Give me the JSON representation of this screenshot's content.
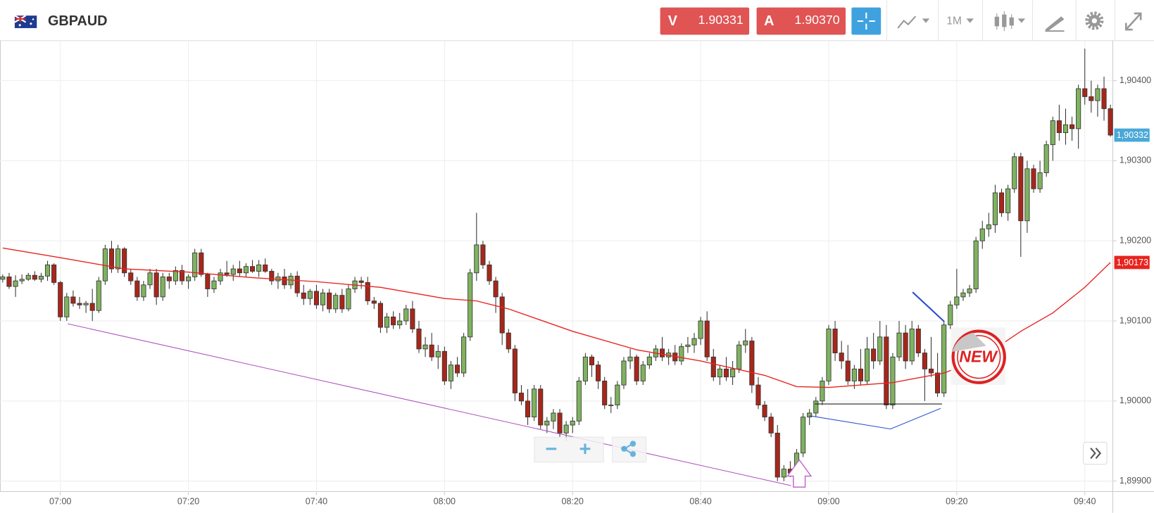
{
  "header": {
    "symbol": "GBPAUD",
    "sell_label": "V",
    "sell_price": 1.90331,
    "buy_label": "A",
    "buy_price": {
      "value": 1.9037,
      "label": "1.90370"
    },
    "timeframe": "1M"
  },
  "badge": "NEW",
  "chart_data": {
    "type": "candlestick",
    "x": [
      "06:51",
      "06:52",
      "06:53",
      "06:54",
      "06:55",
      "06:56",
      "06:57",
      "06:58",
      "06:59",
      "07:00",
      "07:01",
      "07:02",
      "07:03",
      "07:04",
      "07:05",
      "07:06",
      "07:07",
      "07:08",
      "07:09",
      "07:10",
      "07:11",
      "07:12",
      "07:13",
      "07:14",
      "07:15",
      "07:16",
      "07:17",
      "07:18",
      "07:19",
      "07:20",
      "07:21",
      "07:22",
      "07:23",
      "07:24",
      "07:25",
      "07:26",
      "07:27",
      "07:28",
      "07:29",
      "07:30",
      "07:31",
      "07:32",
      "07:33",
      "07:34",
      "07:35",
      "07:36",
      "07:37",
      "07:38",
      "07:39",
      "07:40",
      "07:41",
      "07:42",
      "07:43",
      "07:44",
      "07:45",
      "07:46",
      "07:47",
      "07:48",
      "07:49",
      "07:50",
      "07:51",
      "07:52",
      "07:53",
      "07:54",
      "07:55",
      "07:56",
      "07:57",
      "07:58",
      "07:59",
      "08:00",
      "08:01",
      "08:02",
      "08:03",
      "08:04",
      "08:05",
      "08:06",
      "08:07",
      "08:08",
      "08:09",
      "08:10",
      "08:11",
      "08:12",
      "08:13",
      "08:14",
      "08:15",
      "08:16",
      "08:17",
      "08:18",
      "08:19",
      "08:20",
      "08:21",
      "08:22",
      "08:23",
      "08:24",
      "08:25",
      "08:26",
      "08:27",
      "08:28",
      "08:29",
      "08:30",
      "08:31",
      "08:32",
      "08:33",
      "08:34",
      "08:35",
      "08:36",
      "08:37",
      "08:38",
      "08:39",
      "08:40",
      "08:41",
      "08:42",
      "08:43",
      "08:44",
      "08:45",
      "08:46",
      "08:47",
      "08:48",
      "08:49",
      "08:50",
      "08:51",
      "08:52",
      "08:53",
      "08:54",
      "08:55",
      "08:56",
      "08:57",
      "08:58",
      "08:59",
      "09:00",
      "09:01",
      "09:02",
      "09:03",
      "09:04",
      "09:05",
      "09:06",
      "09:07",
      "09:08",
      "09:09",
      "09:10",
      "09:11",
      "09:12",
      "09:13",
      "09:14",
      "09:15",
      "09:16",
      "09:17",
      "09:18",
      "09:19",
      "09:20",
      "09:21",
      "09:22",
      "09:23",
      "09:24",
      "09:25",
      "09:26",
      "09:27",
      "09:28",
      "09:29",
      "09:30",
      "09:31",
      "09:32",
      "09:33",
      "09:34",
      "09:35",
      "09:36",
      "09:37",
      "09:38",
      "09:39",
      "09:40",
      "09:41",
      "09:42",
      "09:43",
      "09:44"
    ],
    "candles": [
      [
        1.90152,
        1.90158,
        1.90148,
        1.90155
      ],
      [
        1.90155,
        1.9016,
        1.9014,
        1.90143
      ],
      [
        1.90143,
        1.90157,
        1.9013,
        1.9015
      ],
      [
        1.9015,
        1.90158,
        1.90146,
        1.90152
      ],
      [
        1.90152,
        1.9016,
        1.9015,
        1.90157
      ],
      [
        1.90157,
        1.90162,
        1.9015,
        1.90152
      ],
      [
        1.90152,
        1.9016,
        1.90148,
        1.90156
      ],
      [
        1.90156,
        1.90175,
        1.9015,
        1.9017
      ],
      [
        1.9017,
        1.90172,
        1.90145,
        1.90148
      ],
      [
        1.90148,
        1.9015,
        1.901,
        1.90105
      ],
      [
        1.90105,
        1.90135,
        1.901,
        1.9013
      ],
      [
        1.9013,
        1.90138,
        1.90118,
        1.90122
      ],
      [
        1.90122,
        1.9013,
        1.90115,
        1.9012
      ],
      [
        1.9012,
        1.90125,
        1.9011,
        1.90122
      ],
      [
        1.90122,
        1.9014,
        1.901,
        1.90113
      ],
      [
        1.90113,
        1.90155,
        1.9011,
        1.9015
      ],
      [
        1.9015,
        1.90195,
        1.90145,
        1.9019
      ],
      [
        1.9019,
        1.902,
        1.9016,
        1.90165
      ],
      [
        1.90165,
        1.90195,
        1.9016,
        1.9019
      ],
      [
        1.9019,
        1.90192,
        1.90155,
        1.9016
      ],
      [
        1.9016,
        1.90165,
        1.90145,
        1.9015
      ],
      [
        1.9015,
        1.90155,
        1.90125,
        1.9013
      ],
      [
        1.9013,
        1.9015,
        1.90125,
        1.90145
      ],
      [
        1.90145,
        1.90165,
        1.9014,
        1.9016
      ],
      [
        1.9016,
        1.90165,
        1.9012,
        1.9013
      ],
      [
        1.9013,
        1.9016,
        1.90125,
        1.90155
      ],
      [
        1.90155,
        1.9016,
        1.9014,
        1.9015
      ],
      [
        1.9015,
        1.90168,
        1.90145,
        1.90163
      ],
      [
        1.90163,
        1.9017,
        1.90145,
        1.9015
      ],
      [
        1.9015,
        1.90158,
        1.9014,
        1.90155
      ],
      [
        1.90155,
        1.9019,
        1.9015,
        1.90185
      ],
      [
        1.90185,
        1.9019,
        1.90155,
        1.90158
      ],
      [
        1.90158,
        1.9016,
        1.9013,
        1.9014
      ],
      [
        1.9014,
        1.90155,
        1.90135,
        1.9015
      ],
      [
        1.9015,
        1.90165,
        1.90145,
        1.9016
      ],
      [
        1.9016,
        1.90175,
        1.90155,
        1.90158
      ],
      [
        1.90158,
        1.9017,
        1.9015,
        1.90165
      ],
      [
        1.90165,
        1.90175,
        1.90155,
        1.9016
      ],
      [
        1.9016,
        1.90172,
        1.90155,
        1.90168
      ],
      [
        1.90168,
        1.90176,
        1.9016,
        1.90162
      ],
      [
        1.90162,
        1.90176,
        1.90155,
        1.9017
      ],
      [
        1.9017,
        1.90178,
        1.9016,
        1.90162
      ],
      [
        1.90162,
        1.90165,
        1.90145,
        1.9015
      ],
      [
        1.9015,
        1.9016,
        1.9014,
        1.90155
      ],
      [
        1.90155,
        1.90165,
        1.9014,
        1.90145
      ],
      [
        1.90145,
        1.9016,
        1.9014,
        1.90156
      ],
      [
        1.90156,
        1.90162,
        1.9013,
        1.90135
      ],
      [
        1.90135,
        1.90145,
        1.9012,
        1.90128
      ],
      [
        1.90128,
        1.9014,
        1.9012,
        1.90137
      ],
      [
        1.90137,
        1.90145,
        1.90115,
        1.9012
      ],
      [
        1.9012,
        1.9014,
        1.90112,
        1.90135
      ],
      [
        1.90135,
        1.9014,
        1.9011,
        1.90115
      ],
      [
        1.90115,
        1.90135,
        1.9011,
        1.90132
      ],
      [
        1.90132,
        1.9014,
        1.9011,
        1.90115
      ],
      [
        1.90115,
        1.90145,
        1.90112,
        1.9014
      ],
      [
        1.9014,
        1.90155,
        1.90135,
        1.9015
      ],
      [
        1.9015,
        1.90155,
        1.9014,
        1.90148
      ],
      [
        1.90148,
        1.90155,
        1.9012,
        1.90125
      ],
      [
        1.90125,
        1.9013,
        1.90115,
        1.90122
      ],
      [
        1.90122,
        1.90125,
        1.90085,
        1.90092
      ],
      [
        1.90092,
        1.9011,
        1.90085,
        1.90105
      ],
      [
        1.90105,
        1.90112,
        1.9009,
        1.90095
      ],
      [
        1.90095,
        1.9011,
        1.9009,
        1.901
      ],
      [
        1.901,
        1.9012,
        1.90095,
        1.90115
      ],
      [
        1.90115,
        1.90125,
        1.90085,
        1.9009
      ],
      [
        1.9009,
        1.901,
        1.9006,
        1.90065
      ],
      [
        1.90065,
        1.9008,
        1.90055,
        1.9007
      ],
      [
        1.9007,
        1.90085,
        1.9005,
        1.90055
      ],
      [
        1.90055,
        1.9007,
        1.9004,
        1.90062
      ],
      [
        1.90062,
        1.90068,
        1.9002,
        1.90025
      ],
      [
        1.90025,
        1.9005,
        1.90015,
        1.90045
      ],
      [
        1.90045,
        1.90055,
        1.9003,
        1.90035
      ],
      [
        1.90035,
        1.90085,
        1.9003,
        1.9008
      ],
      [
        1.9008,
        1.90165,
        1.90075,
        1.9016
      ],
      [
        1.9016,
        1.90235,
        1.9015,
        1.90195
      ],
      [
        1.90195,
        1.902,
        1.90165,
        1.9017
      ],
      [
        1.9017,
        1.90175,
        1.90145,
        1.9015
      ],
      [
        1.9015,
        1.90155,
        1.9011,
        1.9013
      ],
      [
        1.9013,
        1.90135,
        1.9007,
        1.90085
      ],
      [
        1.90085,
        1.9009,
        1.9006,
        1.90065
      ],
      [
        1.90065,
        1.9007,
        1.9,
        1.9001
      ],
      [
        1.9001,
        1.9002,
        1.89995,
        1.9
      ],
      [
        1.9,
        1.90015,
        1.8997,
        1.8998
      ],
      [
        1.8998,
        1.9002,
        1.89975,
        1.90015
      ],
      [
        1.90015,
        1.9002,
        1.89965,
        1.8997
      ],
      [
        1.8997,
        1.8998,
        1.8996,
        1.89975
      ],
      [
        1.89975,
        1.8999,
        1.89965,
        1.89985
      ],
      [
        1.89985,
        1.8999,
        1.89955,
        1.8996
      ],
      [
        1.8996,
        1.89975,
        1.8995,
        1.8997
      ],
      [
        1.8997,
        1.8998,
        1.8996,
        1.89975
      ],
      [
        1.89975,
        1.9003,
        1.8997,
        1.90025
      ],
      [
        1.90025,
        1.9006,
        1.9002,
        1.90055
      ],
      [
        1.90055,
        1.90058,
        1.9003,
        1.90045
      ],
      [
        1.90045,
        1.9005,
        1.90015,
        1.90025
      ],
      [
        1.90025,
        1.9003,
        1.8999,
        1.89995
      ],
      [
        1.89995,
        1.90005,
        1.89985,
        1.89995
      ],
      [
        1.89995,
        1.90025,
        1.8999,
        1.9002
      ],
      [
        1.9002,
        1.90055,
        1.90015,
        1.9005
      ],
      [
        1.9005,
        1.90065,
        1.9004,
        1.90055
      ],
      [
        1.90055,
        1.90058,
        1.9002,
        1.90025
      ],
      [
        1.90025,
        1.9005,
        1.9002,
        1.90045
      ],
      [
        1.90045,
        1.9006,
        1.9004,
        1.90055
      ],
      [
        1.90055,
        1.9007,
        1.9005,
        1.90065
      ],
      [
        1.90065,
        1.9008,
        1.9005,
        1.90055
      ],
      [
        1.90055,
        1.90065,
        1.90045,
        1.9006
      ],
      [
        1.9006,
        1.9007,
        1.90045,
        1.9005
      ],
      [
        1.9005,
        1.90072,
        1.90045,
        1.90068
      ],
      [
        1.90068,
        1.9008,
        1.9006,
        1.9007
      ],
      [
        1.9007,
        1.90085,
        1.9006,
        1.90078
      ],
      [
        1.90078,
        1.90105,
        1.9007,
        1.901
      ],
      [
        1.901,
        1.90112,
        1.9005,
        1.90055
      ],
      [
        1.90055,
        1.90065,
        1.90025,
        1.9003
      ],
      [
        1.9003,
        1.90045,
        1.9002,
        1.9004
      ],
      [
        1.9004,
        1.90055,
        1.90025,
        1.9003
      ],
      [
        1.9003,
        1.9005,
        1.9002,
        1.9004
      ],
      [
        1.9004,
        1.90075,
        1.90035,
        1.9007
      ],
      [
        1.9007,
        1.9009,
        1.9006,
        1.90075
      ],
      [
        1.90075,
        1.9008,
        1.9001,
        1.9002
      ],
      [
        1.9002,
        1.9003,
        1.8999,
        1.89995
      ],
      [
        1.89995,
        1.9,
        1.89975,
        1.8998
      ],
      [
        1.8998,
        1.89985,
        1.89955,
        1.8996
      ],
      [
        1.8996,
        1.8997,
        1.899,
        1.89905
      ],
      [
        1.89905,
        1.8992,
        1.899,
        1.89915
      ],
      [
        1.89915,
        1.89925,
        1.89905,
        1.8991
      ],
      [
        1.8991,
        1.8994,
        1.89905,
        1.89935
      ],
      [
        1.89935,
        1.89985,
        1.8993,
        1.8998
      ],
      [
        1.8998,
        1.8999,
        1.8997,
        1.89985
      ],
      [
        1.89985,
        1.90005,
        1.8998,
        1.9
      ],
      [
        1.9,
        1.9003,
        1.89995,
        1.90025
      ],
      [
        1.90025,
        1.90095,
        1.9002,
        1.9009
      ],
      [
        1.9009,
        1.901,
        1.9005,
        1.9006
      ],
      [
        1.9006,
        1.90075,
        1.9004,
        1.9005
      ],
      [
        1.9005,
        1.9007,
        1.9002,
        1.90025
      ],
      [
        1.90025,
        1.90045,
        1.90015,
        1.9004
      ],
      [
        1.9004,
        1.90065,
        1.9002,
        1.90025
      ],
      [
        1.90025,
        1.9008,
        1.9002,
        1.90065
      ],
      [
        1.90065,
        1.90085,
        1.9004,
        1.9005
      ],
      [
        1.9005,
        1.901,
        1.90045,
        1.9008
      ],
      [
        1.9008,
        1.90095,
        1.8999,
        1.89995
      ],
      [
        1.89995,
        1.9006,
        1.8999,
        1.90055
      ],
      [
        1.90055,
        1.901,
        1.9005,
        1.90085
      ],
      [
        1.90085,
        1.90095,
        1.9004,
        1.9005
      ],
      [
        1.9005,
        1.901,
        1.90045,
        1.9009
      ],
      [
        1.9009,
        1.90095,
        1.90055,
        1.9006
      ],
      [
        1.9006,
        1.90065,
        1.9,
        1.9004
      ],
      [
        1.9004,
        1.9008,
        1.9003,
        1.90035
      ],
      [
        1.90035,
        1.9006,
        1.90005,
        1.9001
      ],
      [
        1.9001,
        1.901,
        1.90005,
        1.90095
      ],
      [
        1.90095,
        1.90125,
        1.9009,
        1.9012
      ],
      [
        1.9012,
        1.90165,
        1.90115,
        1.9013
      ],
      [
        1.9013,
        1.9014,
        1.90125,
        1.90135
      ],
      [
        1.90135,
        1.90145,
        1.9013,
        1.9014
      ],
      [
        1.9014,
        1.90205,
        1.90135,
        1.902
      ],
      [
        1.902,
        1.90225,
        1.9019,
        1.90215
      ],
      [
        1.90215,
        1.90235,
        1.90205,
        1.9022
      ],
      [
        1.9022,
        1.9027,
        1.9021,
        1.9026
      ],
      [
        1.9026,
        1.90265,
        1.9023,
        1.90235
      ],
      [
        1.90235,
        1.9027,
        1.90225,
        1.90265
      ],
      [
        1.90265,
        1.9031,
        1.9026,
        1.90305
      ],
      [
        1.90305,
        1.9031,
        1.9018,
        1.90225
      ],
      [
        1.90225,
        1.903,
        1.9021,
        1.9029
      ],
      [
        1.9029,
        1.90295,
        1.9026,
        1.90265
      ],
      [
        1.90265,
        1.903,
        1.9026,
        1.90285
      ],
      [
        1.90285,
        1.90325,
        1.9028,
        1.9032
      ],
      [
        1.9032,
        1.90355,
        1.903,
        1.9035
      ],
      [
        1.9035,
        1.9037,
        1.90325,
        1.90335
      ],
      [
        1.90335,
        1.90365,
        1.9032,
        1.90345
      ],
      [
        1.90345,
        1.90355,
        1.90325,
        1.9034
      ],
      [
        1.9034,
        1.90395,
        1.90315,
        1.9039
      ],
      [
        1.9039,
        1.9044,
        1.9037,
        1.9038
      ],
      [
        1.9038,
        1.904,
        1.9036,
        1.90375
      ],
      [
        1.90375,
        1.90395,
        1.90355,
        1.9039
      ],
      [
        1.9039,
        1.90405,
        1.9035,
        1.90365
      ],
      [
        1.90365,
        1.9037,
        1.9033,
        1.90332
      ]
    ],
    "up_color": "#7fb35f",
    "down_color": "#a8261a",
    "moving_average": {
      "color": "#e8231e",
      "x": [
        "06:51",
        "07:00",
        "07:10",
        "07:20",
        "07:30",
        "07:40",
        "07:50",
        "08:00",
        "08:05",
        "08:10",
        "08:20",
        "08:30",
        "08:40",
        "08:50",
        "08:55",
        "09:00",
        "09:10",
        "09:18",
        "09:20",
        "09:25",
        "09:30",
        "09:35",
        "09:40",
        "09:44"
      ],
      "values": [
        1.90191,
        1.90179,
        1.90165,
        1.90161,
        1.90154,
        1.90149,
        1.90142,
        1.90128,
        1.90125,
        1.90115,
        1.90087,
        1.90064,
        1.9005,
        1.90032,
        1.90018,
        1.90017,
        1.90023,
        1.90035,
        1.90041,
        1.9006,
        1.90087,
        1.9011,
        1.90142,
        1.90173
      ]
    },
    "last_price": {
      "value": 1.90332,
      "label": "1,90332",
      "color": "#4aa8d8"
    },
    "ma_last": {
      "value": 1.90173,
      "label": "1,90173",
      "color": "#e8231e"
    },
    "ylim": [
      1.89887,
      1.9045
    ],
    "yticks": [
      {
        "value": 1.899,
        "label": "1,89900"
      },
      {
        "value": 1.9,
        "label": "1,90000"
      },
      {
        "value": 1.901,
        "label": "1,90100"
      },
      {
        "value": 1.902,
        "label": "1,90200"
      },
      {
        "value": 1.903,
        "label": "1,90300"
      },
      {
        "value": 1.904,
        "label": "1,90400"
      }
    ],
    "xticks": [
      "07:00",
      "07:20",
      "07:40",
      "08:00",
      "08:20",
      "08:40",
      "09:00",
      "09:20",
      "09:40"
    ],
    "grid": true
  }
}
